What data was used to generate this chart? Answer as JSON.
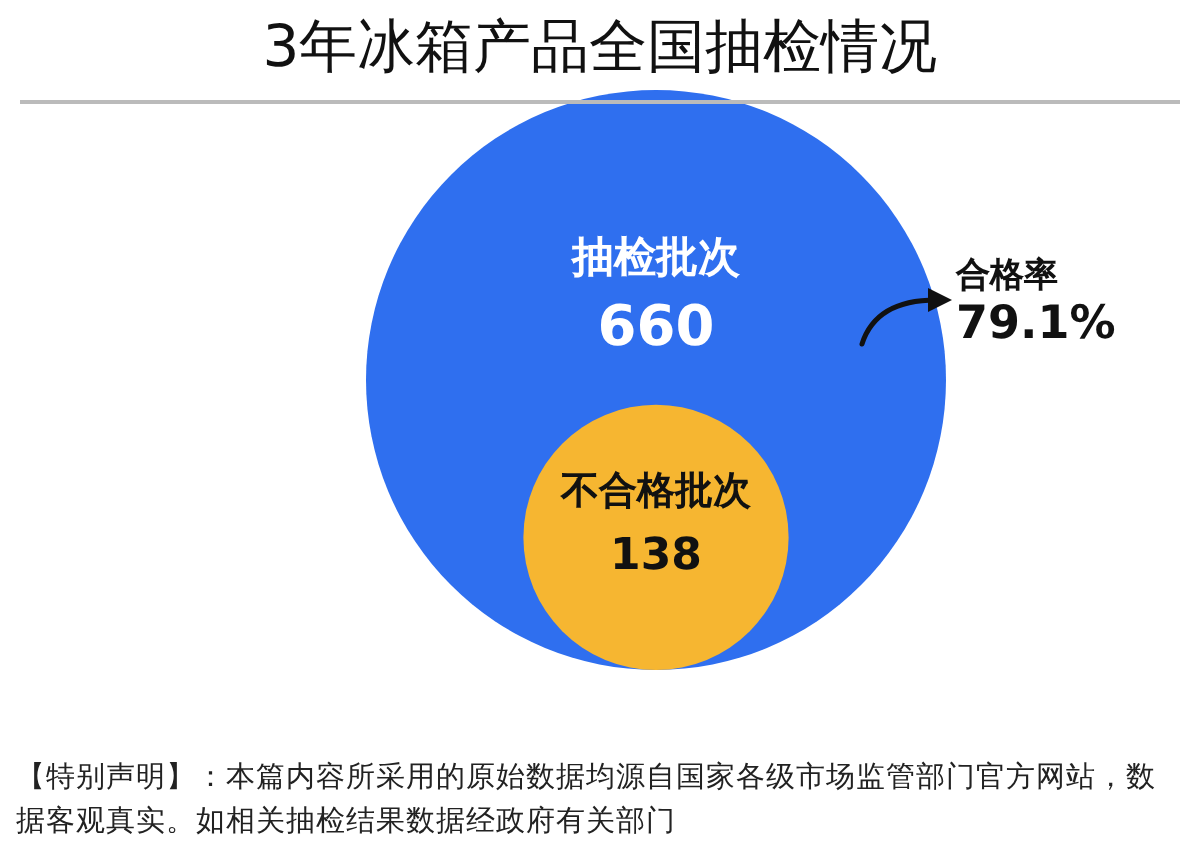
{
  "chart_data": {
    "type": "other",
    "title": "3年冰箱产品全国抽检情况",
    "categories": [
      "抽检批次",
      "不合格批次"
    ],
    "values": [
      660,
      138
    ],
    "colors": [
      "#2f6fef",
      "#f6b631"
    ],
    "data_labels": true,
    "annotations": [
      "合格率 79.1%",
      "【特别声明】：本篇内容所采用的原始数据均源自国家各级市场监管部门官方网站，数据客观真实。如相关抽检结果数据经政府有关部门"
    ]
  }
}
